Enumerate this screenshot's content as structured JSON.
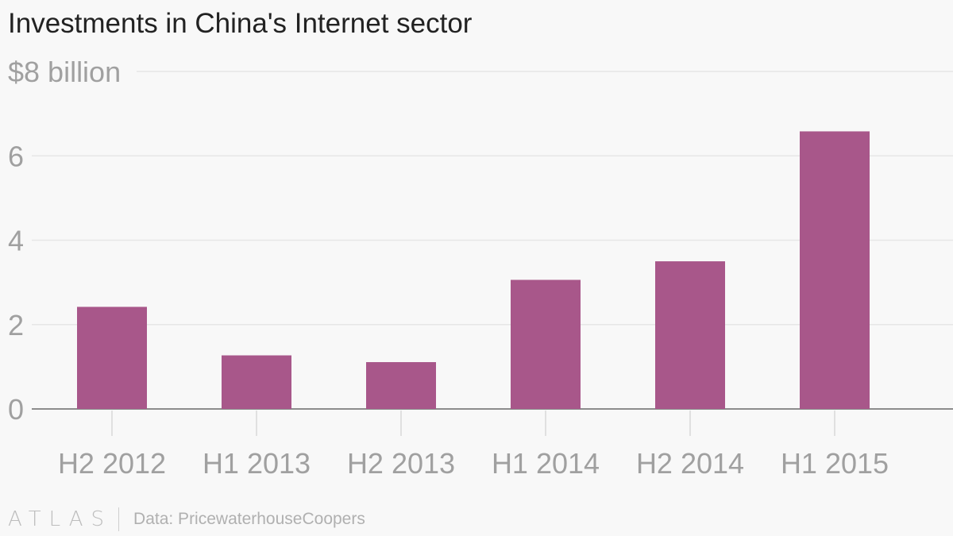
{
  "chart_data": {
    "type": "bar",
    "title": "Investments in China's Internet sector",
    "categories": [
      "H2 2012",
      "H1 2013",
      "H2 2013",
      "H1 2014",
      "H2 2014",
      "H1 2015"
    ],
    "values": [
      2.42,
      1.27,
      1.11,
      3.06,
      3.5,
      6.58
    ],
    "ylim": [
      0,
      8
    ],
    "yticks": [
      0,
      2,
      4,
      6,
      8
    ],
    "ytick_labels": [
      "0",
      "2",
      "4",
      "6",
      "$8 billion"
    ],
    "grid": true,
    "legend": "none",
    "bar_color": "#a8578a"
  },
  "footer": {
    "brand": "ATLAS",
    "source": "Data: PricewaterhouseCoopers"
  }
}
